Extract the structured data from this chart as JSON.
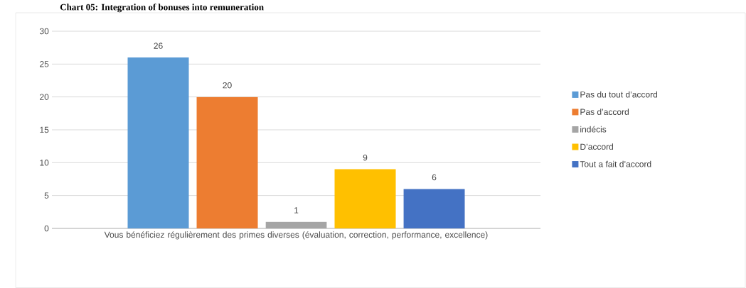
{
  "chart_data": {
    "type": "bar",
    "title": "Chart 05: Integration of bonuses into remuneration",
    "categories": [
      "Vous bénéficiez régulièrement des primes diverses (évaluation, correction, performance, excellence)"
    ],
    "series": [
      {
        "name": "Pas du tout d’accord",
        "color": "#5b9bd5",
        "values": [
          26
        ]
      },
      {
        "name": "Pas d’accord",
        "color": "#ed7d31",
        "values": [
          20
        ]
      },
      {
        "name": "indécis",
        "color": "#a5a5a5",
        "values": [
          1
        ]
      },
      {
        "name": "D’accord",
        "color": "#ffc000",
        "values": [
          9
        ]
      },
      {
        "name": "Tout a fait d’accord",
        "color": "#4472c4",
        "values": [
          6
        ]
      }
    ],
    "ylim": [
      0,
      30
    ],
    "yticks": [
      0,
      5,
      10,
      15,
      20,
      25,
      30
    ],
    "grid": "y",
    "legend": "right",
    "data_labels": true
  }
}
